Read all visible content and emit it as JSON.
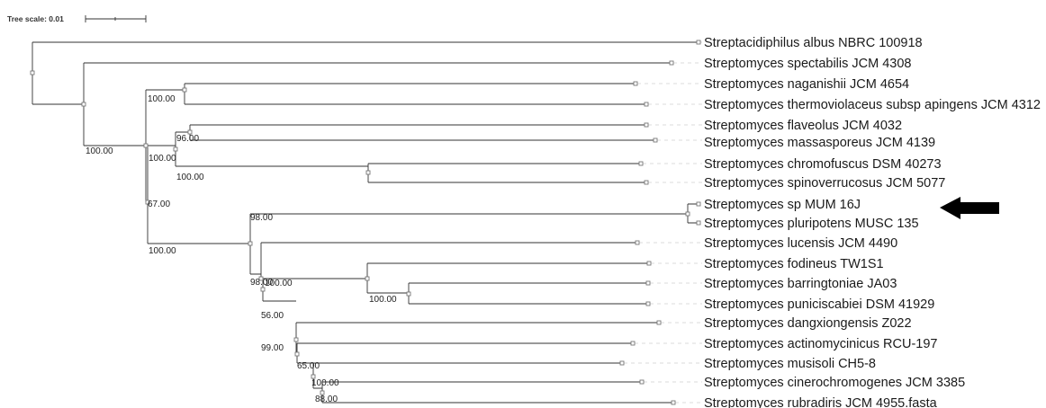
{
  "tree": {
    "scale_label": "Tree scale: 0.01",
    "leaves": [
      "Streptacidiphilus albus NBRC 100918",
      "Streptomyces spectabilis JCM 4308",
      "Streptomyces naganishii JCM 4654",
      "Streptomyces thermoviolaceus subsp apingens JCM 4312",
      "Streptomyces flaveolus JCM 4032",
      "Streptomyces massasporeus JCM 4139",
      "Streptomyces chromofuscus DSM 40273",
      "Streptomyces spinoverrucosus JCM 5077",
      "Streptomyces sp MUM 16J",
      "Streptomyces pluripotens MUSC 135",
      "Streptomyces lucensis JCM 4490",
      "Streptomyces fodineus TW1S1",
      "Streptomyces barringtoniae JA03",
      "Streptomyces puniciscabiei DSM 41929",
      "Streptomyces dangxiongensis Z022",
      "Streptomyces actinomycinicus RCU-197",
      "Streptomyces musisoli CH5-8",
      "Streptomyces cinerochromogenes JCM 3385",
      "Streptomyces rubradiris JCM 4955.fasta"
    ],
    "support_values": [
      "100.00",
      "100.00",
      "96.00",
      "100.00",
      "100.00",
      "67.00",
      "98.00",
      "100.00",
      "98.00",
      "100.00",
      "100.00",
      "56.00",
      "99.00",
      "65.00",
      "100.00",
      "88.00"
    ],
    "highlighted_leaf": "Streptomyces sp MUM 16J"
  }
}
